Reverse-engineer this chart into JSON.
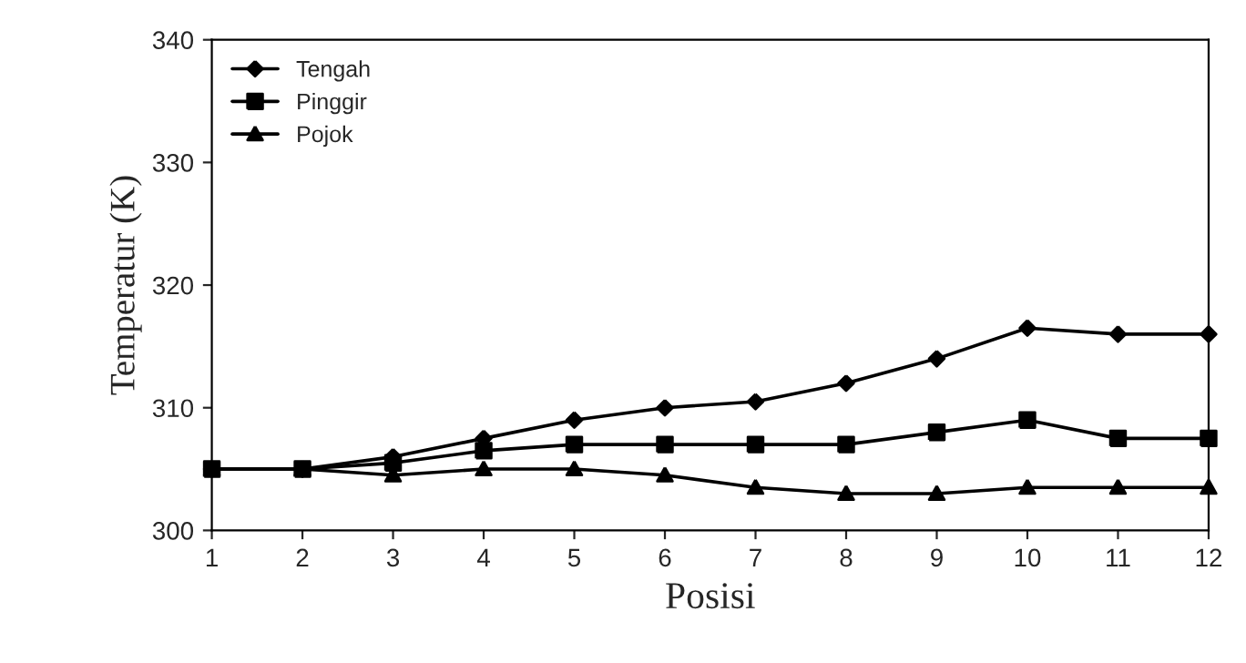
{
  "chart_data": {
    "type": "line",
    "xlabel": "Posisi",
    "ylabel": "Temperatur (K)",
    "x": [
      1,
      2,
      3,
      4,
      5,
      6,
      7,
      8,
      9,
      10,
      11,
      12
    ],
    "xlim": [
      1,
      12
    ],
    "xticks": [
      1,
      2,
      3,
      4,
      5,
      6,
      7,
      8,
      9,
      10,
      11,
      12
    ],
    "ylim": [
      300,
      340
    ],
    "yticks": [
      300,
      310,
      320,
      330,
      340
    ],
    "grid": false,
    "legend": "top left",
    "series": [
      {
        "name": "Tengah",
        "color": "#000000",
        "marker": "diamond",
        "values": [
          305,
          305,
          306,
          307.5,
          309,
          310,
          310.5,
          312,
          314,
          316.5,
          316,
          316
        ]
      },
      {
        "name": "Pinggir",
        "color": "#000000",
        "marker": "square",
        "values": [
          305,
          305,
          305.5,
          306.5,
          307,
          307,
          307,
          307,
          308,
          309,
          307.5,
          307.5
        ]
      },
      {
        "name": "Pojok",
        "color": "#000000",
        "marker": "triangle",
        "values": [
          305,
          305,
          304.5,
          305,
          305,
          304.5,
          303.5,
          303,
          303,
          303.5,
          303.5,
          303.5
        ]
      }
    ]
  }
}
